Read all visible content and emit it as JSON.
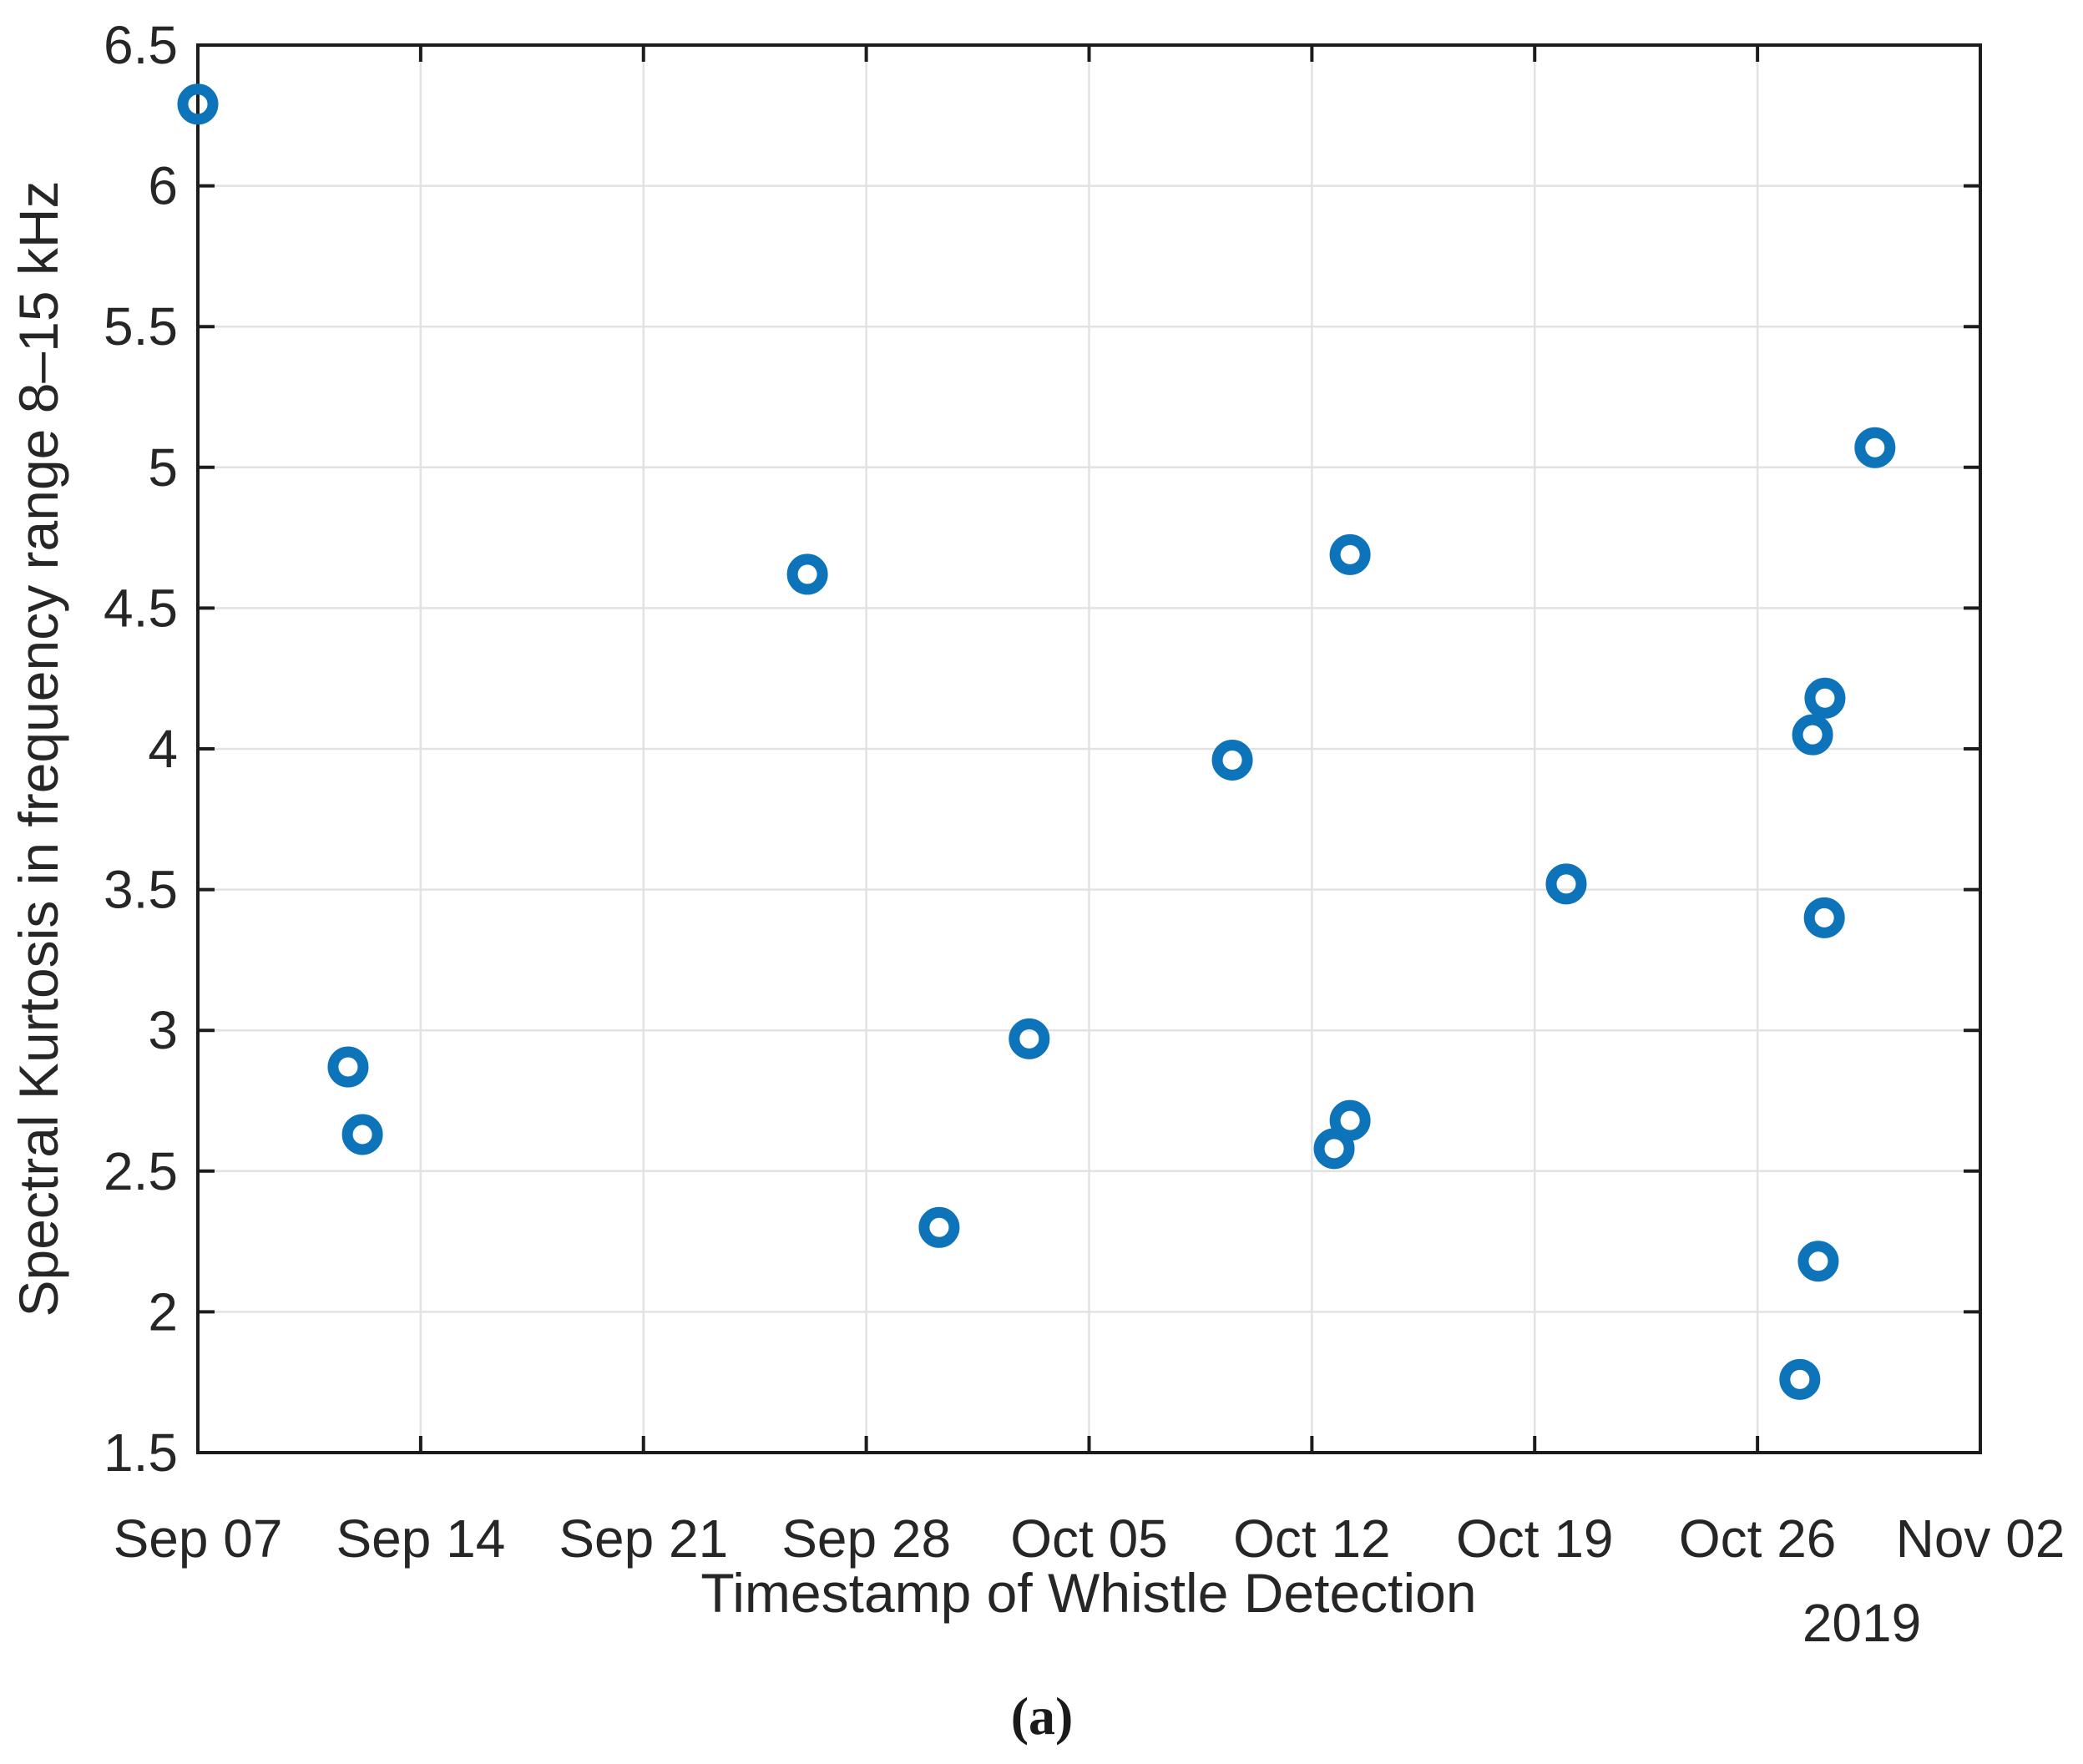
{
  "figure": {
    "background": "#ffffff",
    "caption": "(a)"
  },
  "chart_data": {
    "type": "scatter",
    "title": "",
    "xlabel": "Timestamp of Whistle Detection",
    "ylabel": "Spectral Kurtosis in frequency range 8–15 kHz",
    "x_secondary_label": "2019",
    "x_tick_labels": [
      "Sep 07",
      "Sep 14",
      "Sep 21",
      "Sep 28",
      "Oct 05",
      "Oct 12",
      "Oct 19",
      "Oct 26",
      "Nov 02"
    ],
    "x_tick_days": [
      0,
      7,
      14,
      21,
      28,
      35,
      42,
      49,
      56
    ],
    "x_range_days": [
      0,
      56
    ],
    "ylim": [
      1.5,
      6.5
    ],
    "y_ticks": [
      1.5,
      2,
      2.5,
      3,
      3.5,
      4,
      4.5,
      5,
      5.5,
      6,
      6.5
    ],
    "grid": true,
    "legend": "none",
    "marker": {
      "shape": "open-circle",
      "color": "#0E74BA",
      "radius_px": 18,
      "stroke_px": 13
    },
    "axis_color": "#1c1c1c",
    "grid_color": "#e2e2e2",
    "tick_label_color": "#262626",
    "points": [
      {
        "date": "Sep 07",
        "day": 0.0,
        "value": 6.29
      },
      {
        "date": "Sep 12",
        "day": 4.72,
        "value": 2.87
      },
      {
        "date": "Sep 12",
        "day": 5.17,
        "value": 2.63
      },
      {
        "date": "Sep 26",
        "day": 19.15,
        "value": 4.62
      },
      {
        "date": "Sep 30",
        "day": 23.29,
        "value": 2.3
      },
      {
        "date": "Oct 03",
        "day": 26.12,
        "value": 2.97
      },
      {
        "date": "Oct 10",
        "day": 32.5,
        "value": 3.96
      },
      {
        "date": "Oct 12",
        "day": 35.7,
        "value": 2.58
      },
      {
        "date": "Oct 13",
        "day": 36.2,
        "value": 4.69
      },
      {
        "date": "Oct 13",
        "day": 36.2,
        "value": 2.68
      },
      {
        "date": "Oct 20",
        "day": 42.99,
        "value": 3.52
      },
      {
        "date": "Oct 27",
        "day": 50.33,
        "value": 1.76
      },
      {
        "date": "Oct 28",
        "day": 50.73,
        "value": 4.05
      },
      {
        "date": "Oct 28",
        "day": 50.91,
        "value": 2.18
      },
      {
        "date": "Oct 28",
        "day": 51.1,
        "value": 3.4
      },
      {
        "date": "Oct 28",
        "day": 51.12,
        "value": 4.18
      },
      {
        "date": "Oct 30",
        "day": 52.69,
        "value": 5.07
      }
    ]
  }
}
